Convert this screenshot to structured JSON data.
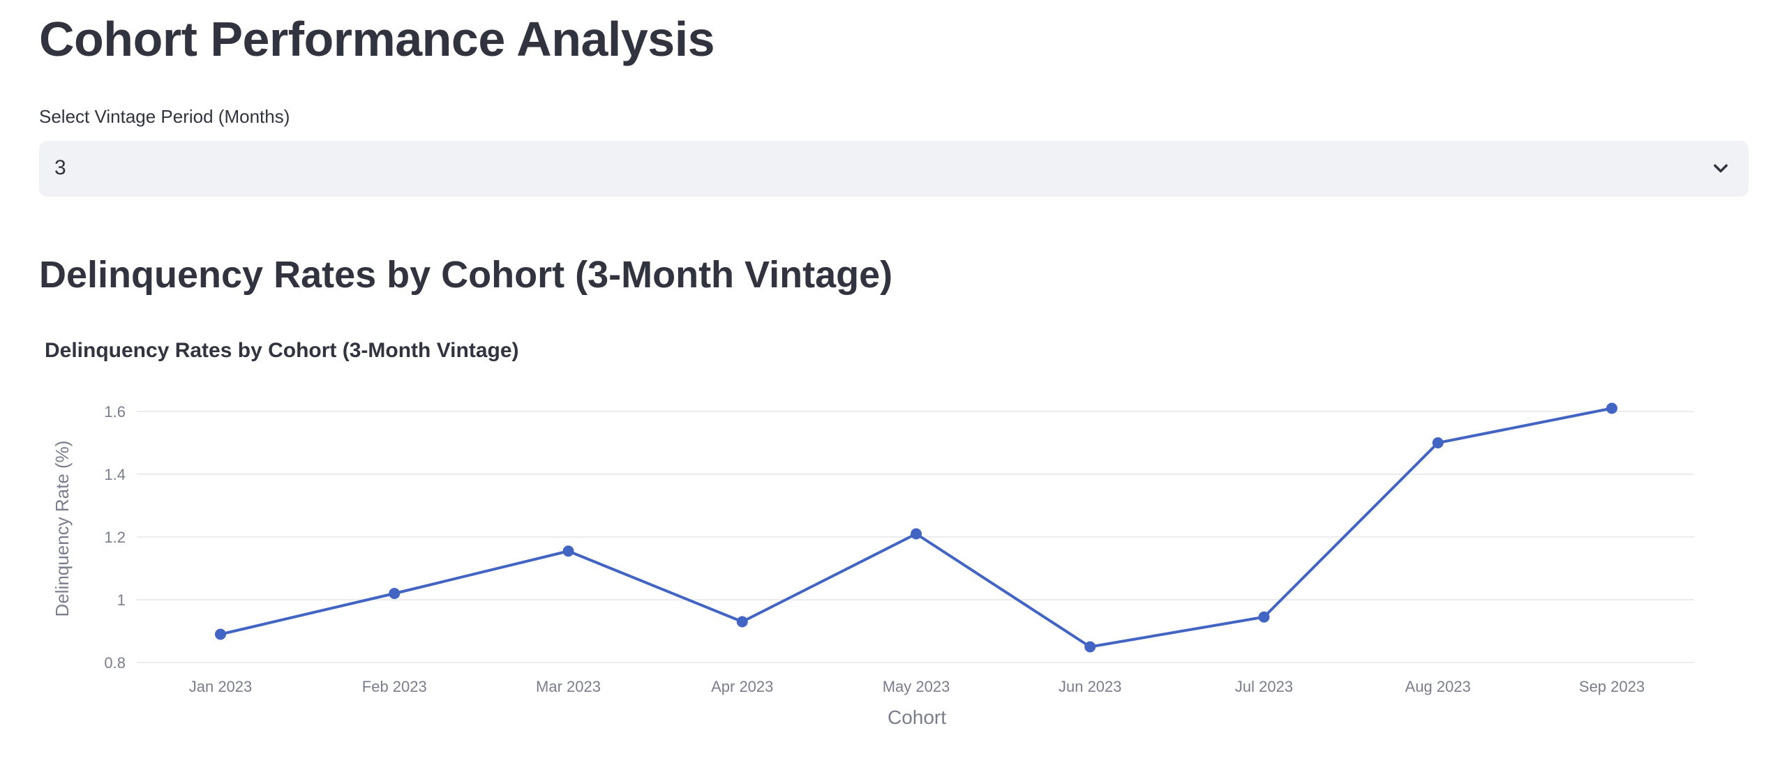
{
  "page": {
    "title": "Cohort Performance Analysis"
  },
  "vintage_select": {
    "label": "Select Vintage Period (Months)",
    "value": "3",
    "icon": "chevron-down-icon"
  },
  "section": {
    "title": "Delinquency Rates by Cohort (3-Month Vintage)"
  },
  "colors": {
    "line": "#4264c2",
    "grid": "#e6e6ea",
    "tick": "#7a7d8c",
    "text": "#31333f"
  },
  "chart_data": {
    "type": "line",
    "title": "Delinquency Rates by Cohort (3-Month Vintage)",
    "xlabel": "Cohort",
    "ylabel": "Delinquency Rate (%)",
    "categories": [
      "Jan 2023",
      "Feb 2023",
      "Mar 2023",
      "Apr 2023",
      "May 2023",
      "Jun 2023",
      "Jul 2023",
      "Aug 2023",
      "Sep 2023"
    ],
    "values": [
      0.89,
      1.02,
      1.155,
      0.93,
      1.21,
      0.85,
      0.945,
      1.5,
      1.61
    ],
    "ylim": [
      0.8,
      1.6
    ],
    "yticks": [
      "0.8",
      "1",
      "1.2",
      "1.4",
      "1.6"
    ],
    "grid": true,
    "markers": true
  }
}
